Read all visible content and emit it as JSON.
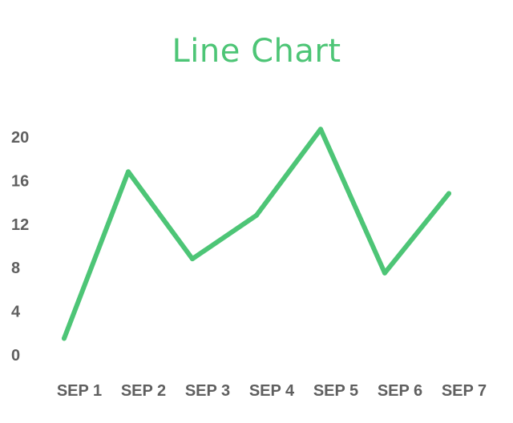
{
  "chart_data": {
    "type": "line",
    "title": "Line Chart",
    "categories": [
      "SEP 1",
      "SEP 2",
      "SEP 3",
      "SEP 4",
      "SEP 5",
      "SEP 6",
      "SEP 7"
    ],
    "series": [
      {
        "values": [
          1,
          16.3,
          8.3,
          12.3,
          20.2,
          7,
          14.3
        ]
      }
    ],
    "yticks": [
      0,
      4,
      8,
      12,
      16,
      20
    ],
    "ylim": [
      0,
      20
    ],
    "grid": false,
    "legend": "none",
    "colors": {
      "title": "#4dc576",
      "line": "#4dc576",
      "tick_labels": "#5f5f5f"
    }
  }
}
